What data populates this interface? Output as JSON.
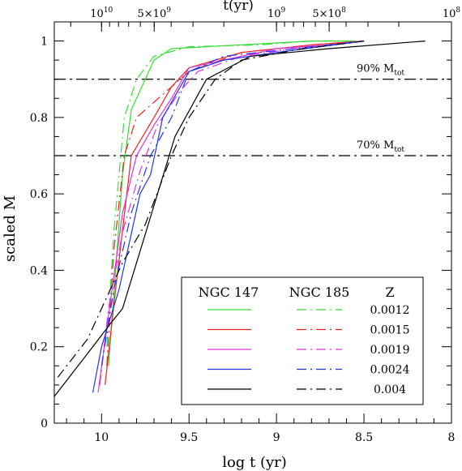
{
  "chart_data": {
    "type": "line",
    "xlabel": "log t (yr)",
    "ylabel": "scaled M",
    "top_axis_label": "t(yr)",
    "xlim": [
      10.27,
      8.0
    ],
    "ylim": [
      0,
      1.05
    ],
    "x_ticks": [
      10,
      9.5,
      9,
      8.5,
      8
    ],
    "x_tick_labels": [
      "10",
      "9.5",
      "9",
      "8.5",
      "8"
    ],
    "y_ticks": [
      0,
      0.2,
      0.4,
      0.6,
      0.8,
      1
    ],
    "y_tick_labels": [
      "0",
      "0.2",
      "0.4",
      "0.6",
      "0.8",
      "1"
    ],
    "top_ticks": [
      {
        "x": 10.0,
        "base": "10",
        "exp": "10"
      },
      {
        "x": 9.699,
        "base": "5×10",
        "exp": "9"
      },
      {
        "x": 9.0,
        "base": "10",
        "exp": "9"
      },
      {
        "x": 8.699,
        "base": "5×10",
        "exp": "8"
      },
      {
        "x": 8.0,
        "base": "10",
        "exp": "8"
      }
    ],
    "reference_lines": [
      {
        "y": 0.9,
        "label": "90% M",
        "sub": "tot"
      },
      {
        "y": 0.7,
        "label": "70% M",
        "sub": "tot"
      }
    ],
    "legend": {
      "headers": [
        "NGC 147",
        "NGC 185",
        "Z"
      ],
      "z_values": [
        "0.0012",
        "0.0015",
        "0.0019",
        "0.0024",
        "0.004"
      ]
    },
    "series": [
      {
        "galaxy": "NGC 147",
        "z": "0.0012",
        "color": "#33dd33",
        "dash": "solid",
        "points": [
          [
            9.96,
            0.15
          ],
          [
            9.92,
            0.4
          ],
          [
            9.88,
            0.65
          ],
          [
            9.83,
            0.82
          ],
          [
            9.75,
            0.9
          ],
          [
            9.7,
            0.95
          ],
          [
            9.6,
            0.98
          ],
          [
            9.2,
            0.99
          ],
          [
            8.8,
            1.0
          ],
          [
            8.55,
            1.0
          ]
        ]
      },
      {
        "galaxy": "NGC 185",
        "z": "0.0012",
        "color": "#33dd33",
        "dash": "dashdot",
        "points": [
          [
            9.97,
            0.2
          ],
          [
            9.93,
            0.5
          ],
          [
            9.87,
            0.8
          ],
          [
            9.8,
            0.9
          ],
          [
            9.7,
            0.96
          ],
          [
            9.5,
            0.985
          ],
          [
            9.1,
            0.99
          ],
          [
            8.8,
            1.0
          ],
          [
            8.55,
            1.0
          ]
        ]
      },
      {
        "galaxy": "NGC 147",
        "z": "0.0015",
        "color": "#ee2222",
        "dash": "solid",
        "points": [
          [
            9.98,
            0.1
          ],
          [
            9.92,
            0.35
          ],
          [
            9.83,
            0.7
          ],
          [
            9.7,
            0.8
          ],
          [
            9.6,
            0.88
          ],
          [
            9.5,
            0.93
          ],
          [
            9.2,
            0.97
          ],
          [
            8.8,
            0.99
          ],
          [
            8.5,
            1.0
          ]
        ]
      },
      {
        "galaxy": "NGC 185",
        "z": "0.0015",
        "color": "#ee2222",
        "dash": "dashdot",
        "points": [
          [
            9.97,
            0.15
          ],
          [
            9.93,
            0.45
          ],
          [
            9.87,
            0.7
          ],
          [
            9.8,
            0.8
          ],
          [
            9.65,
            0.86
          ],
          [
            9.5,
            0.92
          ],
          [
            9.2,
            0.97
          ],
          [
            8.8,
            0.99
          ],
          [
            8.5,
            1.0
          ]
        ]
      },
      {
        "galaxy": "NGC 147",
        "z": "0.0019",
        "color": "#dd33dd",
        "dash": "solid",
        "points": [
          [
            10.02,
            0.08
          ],
          [
            9.97,
            0.25
          ],
          [
            9.88,
            0.55
          ],
          [
            9.8,
            0.7
          ],
          [
            9.7,
            0.78
          ],
          [
            9.6,
            0.85
          ],
          [
            9.5,
            0.93
          ],
          [
            9.3,
            0.95
          ],
          [
            9.0,
            0.98
          ],
          [
            8.7,
            0.99
          ],
          [
            8.5,
            1.0
          ]
        ]
      },
      {
        "galaxy": "NGC 185",
        "z": "0.0019",
        "color": "#dd33dd",
        "dash": "dashdot",
        "points": [
          [
            10.01,
            0.1
          ],
          [
            9.96,
            0.3
          ],
          [
            9.88,
            0.5
          ],
          [
            9.78,
            0.66
          ],
          [
            9.68,
            0.78
          ],
          [
            9.55,
            0.87
          ],
          [
            9.45,
            0.92
          ],
          [
            9.2,
            0.96
          ],
          [
            8.9,
            0.98
          ],
          [
            8.5,
            1.0
          ]
        ]
      },
      {
        "galaxy": "NGC 147",
        "z": "0.0024",
        "color": "#2233ee",
        "dash": "solid",
        "points": [
          [
            10.05,
            0.08
          ],
          [
            10.0,
            0.2
          ],
          [
            9.9,
            0.35
          ],
          [
            9.78,
            0.6
          ],
          [
            9.72,
            0.65
          ],
          [
            9.65,
            0.8
          ],
          [
            9.5,
            0.92
          ],
          [
            9.3,
            0.95
          ],
          [
            9.0,
            0.97
          ],
          [
            8.5,
            1.0
          ]
        ]
      },
      {
        "galaxy": "NGC 185",
        "z": "0.0024",
        "color": "#2233ee",
        "dash": "dashdot",
        "points": [
          [
            10.0,
            0.15
          ],
          [
            9.93,
            0.35
          ],
          [
            9.83,
            0.55
          ],
          [
            9.72,
            0.7
          ],
          [
            9.6,
            0.8
          ],
          [
            9.5,
            0.92
          ],
          [
            9.3,
            0.96
          ],
          [
            8.9,
            0.98
          ],
          [
            8.5,
            1.0
          ]
        ]
      },
      {
        "galaxy": "NGC 147",
        "z": "0.004",
        "color": "#000000",
        "dash": "solid",
        "points": [
          [
            10.27,
            0.07
          ],
          [
            10.05,
            0.2
          ],
          [
            9.95,
            0.26
          ],
          [
            9.88,
            0.3
          ],
          [
            9.78,
            0.45
          ],
          [
            9.68,
            0.6
          ],
          [
            9.58,
            0.75
          ],
          [
            9.4,
            0.9
          ],
          [
            9.15,
            0.96
          ],
          [
            8.7,
            0.98
          ],
          [
            8.15,
            1.0
          ]
        ]
      },
      {
        "galaxy": "NGC 185",
        "z": "0.004",
        "color": "#000000",
        "dash": "dashdot",
        "points": [
          [
            10.25,
            0.12
          ],
          [
            10.08,
            0.22
          ],
          [
            9.97,
            0.33
          ],
          [
            9.88,
            0.42
          ],
          [
            9.75,
            0.52
          ],
          [
            9.6,
            0.7
          ],
          [
            9.5,
            0.8
          ],
          [
            9.35,
            0.9
          ],
          [
            9.2,
            0.95
          ],
          [
            8.85,
            0.98
          ],
          [
            8.5,
            1.0
          ]
        ]
      }
    ]
  }
}
